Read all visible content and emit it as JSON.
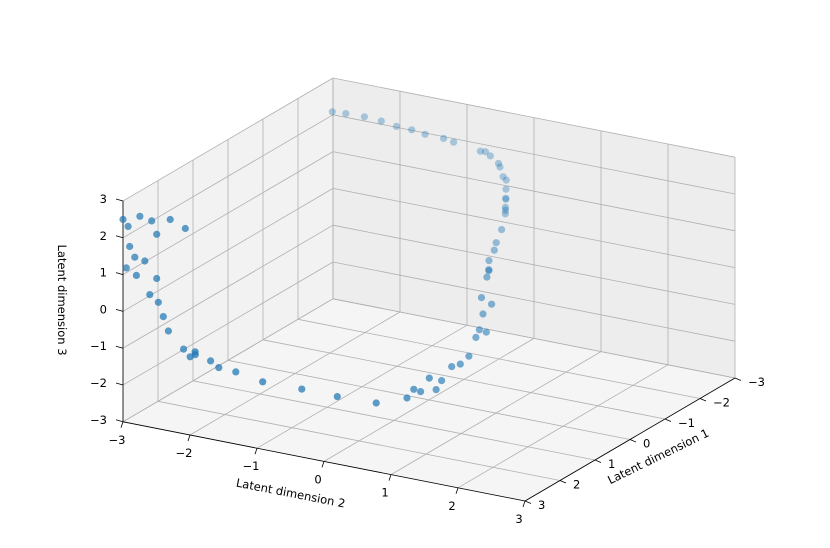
{
  "chart_data": {
    "type": "scatter",
    "title": "",
    "xlabel": "Latent dimension 1",
    "ylabel": "Latent dimension 2",
    "zlabel": "Latent dimension 3",
    "xlim": [
      -3,
      3
    ],
    "ylim": [
      -3,
      3
    ],
    "zlim": [
      -3,
      3
    ],
    "xticks": [
      "−3",
      "−2",
      "−1",
      "0",
      "1",
      "2",
      "3"
    ],
    "yticks": [
      "−3",
      "−2",
      "−1",
      "0",
      "1",
      "2",
      "3"
    ],
    "zticks": [
      "−3",
      "−2",
      "−1",
      "0",
      "1",
      "2",
      "3"
    ],
    "grid": true,
    "marker_color": "#1f77b4",
    "series": [
      {
        "points": [
          [
            3.0,
            -3.0,
            2.5
          ],
          [
            2.9,
            -2.8,
            2.6
          ],
          [
            2.95,
            -2.95,
            2.3
          ],
          [
            2.85,
            -2.65,
            2.5
          ],
          [
            2.8,
            -2.4,
            2.6
          ],
          [
            2.9,
            -2.55,
            2.2
          ],
          [
            2.75,
            -2.2,
            2.4
          ],
          [
            3.0,
            -2.9,
            1.8
          ],
          [
            2.95,
            -2.85,
            1.5
          ],
          [
            3.0,
            -2.95,
            1.2
          ],
          [
            3.0,
            -2.8,
            1.05
          ],
          [
            2.95,
            -2.7,
            1.45
          ],
          [
            2.9,
            -2.55,
            1.0
          ],
          [
            3.0,
            -2.6,
            0.6
          ],
          [
            2.95,
            -2.5,
            0.4
          ],
          [
            2.9,
            -2.45,
            0.0
          ],
          [
            2.85,
            -2.4,
            -0.4
          ],
          [
            2.8,
            -2.2,
            -0.85
          ],
          [
            2.9,
            -2.05,
            -0.95
          ],
          [
            2.85,
            -2.0,
            -0.9
          ],
          [
            2.95,
            -1.95,
            -0.75
          ],
          [
            2.7,
            -1.85,
            -1.1
          ],
          [
            2.75,
            -1.7,
            -1.2
          ],
          [
            2.65,
            -1.5,
            -1.3
          ],
          [
            2.55,
            -1.15,
            -1.5
          ],
          [
            2.2,
            -0.75,
            -1.75
          ],
          [
            1.95,
            -0.35,
            -1.95
          ],
          [
            1.7,
            0.1,
            -2.1
          ],
          [
            1.3,
            0.35,
            -2.1
          ],
          [
            1.2,
            0.4,
            -1.9
          ],
          [
            1.1,
            0.45,
            -2.0
          ],
          [
            0.95,
            0.5,
            -1.7
          ],
          [
            0.85,
            0.55,
            -2.05
          ],
          [
            0.75,
            0.58,
            -1.85
          ],
          [
            0.5,
            0.6,
            -1.6
          ],
          [
            0.35,
            0.65,
            -1.6
          ],
          [
            0.2,
            0.7,
            -1.45
          ],
          [
            0.0,
            0.7,
            -1.05
          ],
          [
            -0.2,
            0.75,
            -1.0
          ],
          [
            -0.1,
            0.7,
            -0.9
          ],
          [
            -0.3,
            0.65,
            -0.6
          ],
          [
            -0.45,
            0.7,
            -0.4
          ],
          [
            -0.35,
            0.6,
            -0.2
          ],
          [
            -0.6,
            0.55,
            0.2
          ],
          [
            -0.75,
            0.5,
            0.3
          ],
          [
            -0.85,
            0.45,
            0.2
          ],
          [
            -0.95,
            0.4,
            0.4
          ],
          [
            -1.1,
            0.4,
            0.6
          ],
          [
            -1.25,
            0.35,
            0.7
          ],
          [
            -1.5,
            0.3,
            0.9
          ],
          [
            -1.7,
            0.25,
            1.2
          ],
          [
            -1.8,
            0.2,
            1.3
          ],
          [
            -1.9,
            0.15,
            1.15
          ],
          [
            -2.0,
            0.1,
            1.4
          ],
          [
            -2.1,
            0.05,
            1.3
          ],
          [
            -2.2,
            0.0,
            1.5
          ],
          [
            -2.4,
            -0.1,
            1.6
          ],
          [
            -2.5,
            -0.2,
            1.6
          ],
          [
            -2.7,
            -0.35,
            1.7
          ],
          [
            -2.75,
            -0.4,
            1.75
          ],
          [
            -2.9,
            -0.6,
            1.8
          ],
          [
            -2.95,
            -0.7,
            1.85
          ],
          [
            -3.0,
            -0.8,
            1.8
          ],
          [
            -3.0,
            -1.2,
            1.9
          ],
          [
            -3.0,
            -1.35,
            1.95
          ],
          [
            -2.95,
            -1.6,
            2.0
          ],
          [
            -2.95,
            -1.8,
            2.05
          ],
          [
            -2.9,
            -2.0,
            2.1
          ],
          [
            -2.85,
            -2.2,
            2.2
          ],
          [
            -2.75,
            -2.4,
            2.3
          ],
          [
            -2.6,
            -2.6,
            2.4
          ],
          [
            -2.5,
            -2.75,
            2.45
          ]
        ]
      }
    ]
  }
}
